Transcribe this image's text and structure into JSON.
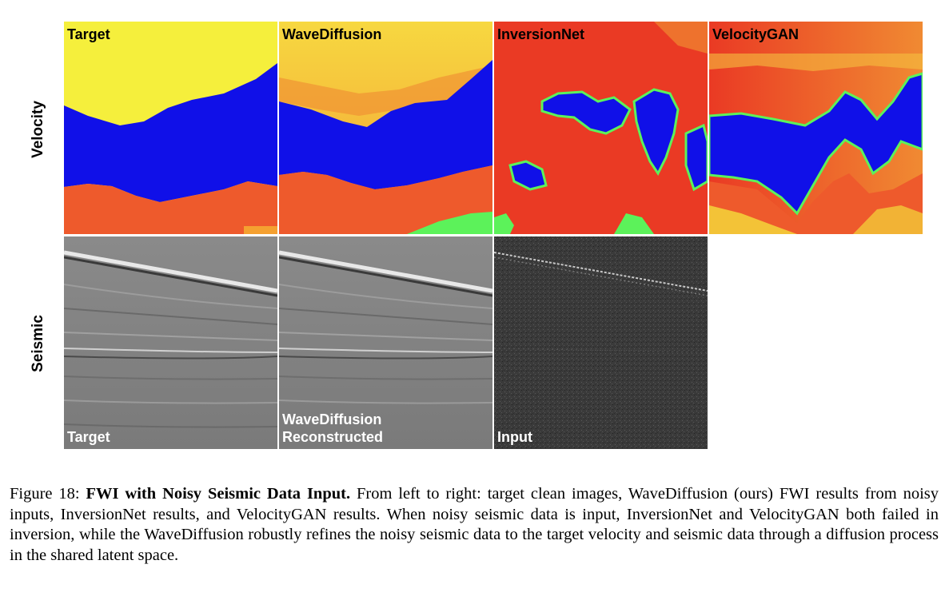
{
  "rows": {
    "velocity_label": "Velocity",
    "seismic_label": "Seismic"
  },
  "velocity_panels": [
    {
      "title": "Target"
    },
    {
      "title": "WaveDiffusion"
    },
    {
      "title": "InversionNet"
    },
    {
      "title": "VelocityGAN"
    }
  ],
  "seismic_panels": [
    {
      "label": "Target"
    },
    {
      "label_line1": "WaveDiffusion",
      "label_line2": "Reconstructed"
    },
    {
      "label": "Input"
    }
  ],
  "colors": {
    "yellow": "#f5ef3c",
    "blue": "#1010e8",
    "orange": "#ee5a2c",
    "red": "#ea3a24",
    "green": "#5cf25a"
  },
  "caption": {
    "figure_number": "Figure 18:",
    "title": "FWI with Noisy Seismic Data Input.",
    "text": "From left to right: target clean images, WaveDiffusion (ours) FWI results from noisy inputs, InversionNet results, and VelocityGAN results. When noisy seismic data is input, InversionNet and VelocityGAN both failed in inversion, while the WaveDiffusion robustly refines the noisy seismic data to the target velocity and seismic data through a diffusion process in the shared latent space."
  }
}
